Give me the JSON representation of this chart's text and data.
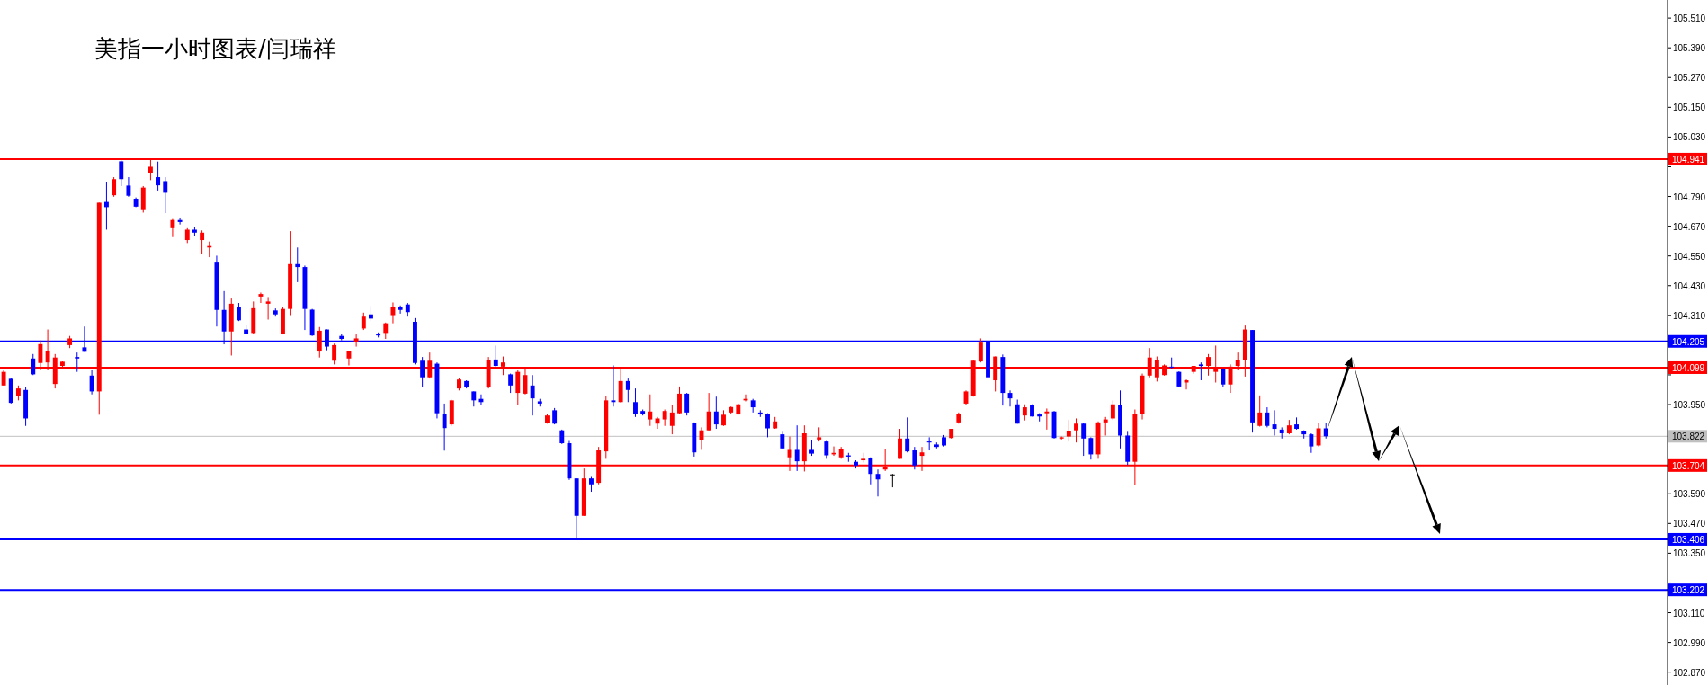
{
  "chart_data": {
    "type": "candlestick",
    "title": "美指一小时图表/闫瑞祥",
    "categories": [
      null,
      null,
      null,
      null,
      null,
      null,
      null,
      null,
      null,
      null,
      null,
      null,
      null,
      null,
      null,
      null,
      null,
      null,
      null,
      null,
      null,
      null,
      null,
      null,
      null,
      null,
      null,
      null,
      null,
      null,
      null,
      null,
      null,
      null,
      null,
      null,
      null,
      null,
      null,
      null,
      null,
      null,
      null,
      null,
      null,
      null,
      null,
      null,
      null,
      null,
      null,
      null,
      null,
      null,
      null,
      null,
      null,
      null,
      null,
      null,
      null,
      null,
      null,
      null,
      null,
      null,
      null,
      null,
      null,
      null,
      null,
      null,
      null,
      null,
      null,
      null,
      null,
      null,
      null,
      null,
      null,
      null,
      null,
      null,
      null,
      null,
      null,
      null,
      null,
      null,
      null,
      null,
      null,
      null,
      null,
      null,
      null,
      null,
      null,
      null,
      null,
      null,
      null,
      null,
      null,
      null,
      null,
      null,
      null,
      null,
      null,
      null,
      null,
      null,
      null,
      null,
      null,
      null,
      null,
      null,
      null,
      null,
      null,
      null,
      null,
      null,
      null,
      null,
      null,
      null,
      null,
      null,
      null,
      null,
      null,
      null,
      null,
      null,
      null,
      null,
      null,
      null,
      null,
      null,
      null,
      null,
      null,
      null,
      null,
      null,
      null,
      null,
      null,
      null,
      null,
      null,
      null,
      null,
      null,
      null,
      null,
      null,
      null,
      null,
      null,
      null,
      null,
      null,
      null,
      null,
      null,
      null,
      null,
      null,
      null,
      null,
      null,
      null,
      null,
      null,
      null,
      null,
      null,
      null,
      null,
      null,
      null,
      null,
      null,
      null,
      null,
      null,
      null,
      null,
      null,
      null,
      null,
      null,
      null,
      null,
      null,
      null,
      null,
      null,
      null,
      null,
      null,
      null,
      null,
      null,
      null,
      null,
      null,
      null,
      null,
      null,
      null,
      null,
      null,
      null,
      null,
      null,
      null,
      null,
      null,
      null,
      null
    ],
    "ohlc": [
      [
        104.027,
        104.088,
        104.027,
        104.082
      ],
      [
        104.054,
        104.057,
        103.954,
        103.957
      ],
      [
        103.985,
        104.027,
        103.967,
        104.015
      ],
      [
        104.009,
        104.021,
        103.864,
        103.894
      ],
      [
        104.136,
        104.154,
        104.069,
        104.072
      ],
      [
        104.118,
        104.209,
        104.088,
        104.194
      ],
      [
        104.12,
        104.253,
        104.088,
        104.166
      ],
      [
        104.033,
        104.154,
        104.015,
        104.14
      ],
      [
        104.106,
        104.124,
        104.096,
        104.123
      ],
      [
        104.19,
        104.227,
        104.178,
        104.217
      ],
      [
        104.142,
        104.16,
        104.082,
        104.136
      ],
      [
        104.181,
        104.265,
        104.163,
        104.163
      ],
      [
        104.067,
        104.088,
        103.991,
        104.003
      ],
      [
        104.003,
        104.765,
        103.909,
        104.765
      ],
      [
        104.768,
        104.85,
        104.656,
        104.747
      ],
      [
        104.795,
        104.868,
        104.789,
        104.86
      ],
      [
        104.932,
        104.935,
        104.832,
        104.86
      ],
      [
        104.834,
        104.868,
        104.789,
        104.793
      ],
      [
        104.781,
        104.786,
        104.747,
        104.749
      ],
      [
        104.735,
        104.832,
        104.725,
        104.826
      ],
      [
        104.886,
        104.941,
        104.856,
        104.91
      ],
      [
        104.868,
        104.931,
        104.814,
        104.835
      ],
      [
        104.852,
        104.868,
        104.723,
        104.805
      ],
      [
        104.662,
        104.699,
        104.626,
        104.695
      ],
      [
        104.695,
        104.705,
        104.677,
        104.687
      ],
      [
        104.614,
        104.662,
        104.602,
        104.656
      ],
      [
        104.656,
        104.668,
        104.632,
        104.644
      ],
      [
        104.614,
        104.653,
        104.559,
        104.644
      ],
      [
        104.584,
        104.608,
        104.545,
        104.59
      ],
      [
        104.523,
        104.551,
        104.265,
        104.332
      ],
      [
        104.332,
        104.408,
        104.193,
        104.245
      ],
      [
        104.245,
        104.378,
        104.148,
        104.357
      ],
      [
        104.345,
        104.36,
        104.287,
        104.29
      ],
      [
        104.253,
        104.269,
        104.233,
        104.236
      ],
      [
        104.239,
        104.366,
        104.233,
        104.339
      ],
      [
        104.386,
        104.402,
        104.36,
        104.396
      ],
      [
        104.357,
        104.384,
        104.293,
        104.366
      ],
      [
        104.33,
        104.338,
        104.305,
        104.314
      ],
      [
        104.236,
        104.342,
        104.233,
        104.336
      ],
      [
        104.336,
        104.65,
        104.311,
        104.517
      ],
      [
        104.517,
        104.584,
        104.444,
        104.505
      ],
      [
        104.505,
        104.511,
        104.251,
        104.336
      ],
      [
        104.333,
        104.336,
        104.227,
        104.229
      ],
      [
        104.164,
        104.263,
        104.14,
        104.248
      ],
      [
        104.253,
        104.253,
        104.169,
        104.184
      ],
      [
        104.127,
        104.196,
        104.112,
        104.19
      ],
      [
        104.227,
        104.236,
        104.209,
        104.215
      ],
      [
        104.136,
        104.166,
        104.108,
        104.166
      ],
      [
        104.203,
        104.233,
        104.184,
        104.217
      ],
      [
        104.257,
        104.321,
        104.251,
        104.305
      ],
      [
        104.314,
        104.348,
        104.287,
        104.297
      ],
      [
        104.236,
        104.241,
        104.221,
        104.229
      ],
      [
        104.239,
        104.281,
        104.215,
        104.278
      ],
      [
        104.311,
        104.362,
        104.278,
        104.344
      ],
      [
        104.342,
        104.35,
        104.317,
        104.332
      ],
      [
        104.354,
        104.36,
        104.305,
        104.323
      ],
      [
        104.284,
        104.299,
        104.112,
        104.118
      ],
      [
        104.127,
        104.142,
        104.019,
        104.06
      ],
      [
        104.06,
        104.16,
        104.055,
        104.127
      ],
      [
        104.115,
        104.12,
        103.894,
        103.915
      ],
      [
        103.912,
        103.954,
        103.764,
        103.855
      ],
      [
        103.87,
        103.97,
        103.864,
        103.967
      ],
      [
        104.015,
        104.057,
        104.007,
        104.051
      ],
      [
        104.045,
        104.048,
        104.015,
        104.019
      ],
      [
        104.003,
        104.003,
        103.942,
        103.967
      ],
      [
        103.973,
        103.991,
        103.948,
        103.96
      ],
      [
        104.019,
        104.142,
        104.015,
        104.13
      ],
      [
        104.132,
        104.188,
        104.1,
        104.106
      ],
      [
        104.103,
        104.144,
        104.069,
        104.12
      ],
      [
        104.072,
        104.075,
        103.997,
        104.027
      ],
      [
        103.997,
        104.088,
        103.948,
        104.082
      ],
      [
        103.994,
        104.1,
        103.991,
        104.069
      ],
      [
        104.027,
        104.069,
        103.906,
        103.975
      ],
      [
        103.963,
        103.973,
        103.942,
        103.954
      ],
      [
        103.876,
        103.912,
        103.873,
        103.906
      ],
      [
        103.927,
        103.936,
        103.87,
        103.873
      ],
      [
        103.846,
        103.849,
        103.791,
        103.794
      ],
      [
        103.794,
        103.803,
        103.646,
        103.652
      ],
      [
        103.652,
        103.652,
        103.404,
        103.501
      ],
      [
        103.501,
        103.692,
        103.501,
        103.652
      ],
      [
        103.652,
        103.658,
        103.598,
        103.628
      ],
      [
        103.634,
        103.779,
        103.628,
        103.765
      ],
      [
        103.761,
        103.985,
        103.731,
        103.967
      ],
      [
        103.967,
        104.108,
        103.942,
        103.96
      ],
      [
        103.96,
        104.1,
        103.958,
        104.045
      ],
      [
        104.045,
        104.055,
        103.96,
        104.009
      ],
      [
        103.96,
        104.015,
        103.9,
        103.912
      ],
      [
        103.924,
        103.93,
        103.906,
        103.912
      ],
      [
        103.89,
        103.991,
        103.864,
        103.922
      ],
      [
        103.873,
        103.9,
        103.852,
        103.894
      ],
      [
        103.89,
        103.93,
        103.864,
        103.924
      ],
      [
        103.864,
        103.948,
        103.83,
        103.918
      ],
      [
        103.915,
        104.023,
        103.912,
        103.994
      ],
      [
        103.994,
        103.997,
        103.906,
        103.918
      ],
      [
        103.876,
        103.878,
        103.74,
        103.757
      ],
      [
        103.806,
        103.858,
        103.767,
        103.846
      ],
      [
        103.846,
        103.997,
        103.846,
        103.922
      ],
      [
        103.922,
        103.982,
        103.852,
        103.87
      ],
      [
        103.866,
        103.927,
        103.864,
        103.909
      ],
      [
        103.918,
        103.942,
        103.912,
        103.94
      ],
      [
        103.91,
        103.954,
        103.91,
        103.951
      ],
      [
        103.967,
        103.991,
        103.963,
        103.973
      ],
      [
        103.967,
        103.973,
        103.918,
        103.939
      ],
      [
        103.918,
        103.927,
        103.9,
        103.91
      ],
      [
        103.912,
        103.915,
        103.818,
        103.854
      ],
      [
        103.854,
        103.9,
        103.852,
        103.882
      ],
      [
        103.83,
        103.84,
        103.769,
        103.773
      ],
      [
        103.737,
        103.821,
        103.682,
        103.767
      ],
      [
        103.767,
        103.866,
        103.682,
        103.721
      ],
      [
        103.721,
        103.866,
        103.68,
        103.834
      ],
      [
        103.767,
        103.806,
        103.743,
        103.752
      ],
      [
        103.809,
        103.858,
        103.801,
        103.818
      ],
      [
        103.801,
        103.803,
        103.731,
        103.745
      ],
      [
        103.749,
        103.781,
        103.743,
        103.755
      ],
      [
        103.737,
        103.779,
        103.731,
        103.769
      ],
      [
        103.745,
        103.755,
        103.719,
        103.74
      ],
      [
        103.719,
        103.725,
        103.692,
        103.704
      ],
      [
        103.725,
        103.755,
        103.716,
        103.731
      ],
      [
        103.733,
        103.737,
        103.628,
        103.67
      ],
      [
        103.67,
        103.688,
        103.579,
        103.648
      ],
      [
        103.688,
        103.769,
        103.682,
        103.7
      ],
      [
        103.668,
        103.67,
        103.616,
        103.668
      ],
      [
        103.731,
        103.852,
        103.731,
        103.813
      ],
      [
        103.813,
        103.898,
        103.757,
        103.761
      ],
      [
        103.765,
        103.779,
        103.688,
        103.704
      ],
      [
        103.743,
        103.779,
        103.682,
        103.757
      ],
      [
        103.801,
        103.818,
        103.765,
        103.797
      ],
      [
        103.789,
        103.797,
        103.773,
        103.779
      ],
      [
        103.818,
        103.827,
        103.781,
        103.785
      ],
      [
        103.815,
        103.852,
        103.813,
        103.852
      ],
      [
        103.878,
        103.918,
        103.873,
        103.912
      ],
      [
        103.954,
        104.007,
        103.948,
        104.003
      ],
      [
        103.985,
        104.13,
        103.982,
        104.127
      ],
      [
        104.124,
        104.217,
        104.12,
        104.2
      ],
      [
        104.203,
        104.203,
        104.048,
        104.06
      ],
      [
        104.048,
        104.144,
        104.003,
        104.144
      ],
      [
        104.142,
        104.152,
        103.946,
        103.997
      ],
      [
        103.997,
        104.007,
        103.942,
        103.975
      ],
      [
        103.951,
        103.97,
        103.873,
        103.873
      ],
      [
        103.906,
        103.951,
        103.886,
        103.939
      ],
      [
        103.948,
        103.951,
        103.902,
        103.902
      ],
      [
        103.91,
        103.915,
        103.882,
        103.902
      ],
      [
        103.915,
        103.934,
        103.849,
        103.922
      ],
      [
        103.922,
        103.924,
        103.813,
        103.815
      ],
      [
        103.813,
        103.821,
        103.809,
        103.818
      ],
      [
        103.821,
        103.888,
        103.801,
        103.842
      ],
      [
        103.846,
        103.894,
        103.797,
        103.873
      ],
      [
        103.873,
        103.876,
        103.743,
        103.813
      ],
      [
        103.815,
        103.818,
        103.728,
        103.749
      ],
      [
        103.749,
        103.882,
        103.731,
        103.878
      ],
      [
        103.878,
        103.9,
        103.825,
        103.89
      ],
      [
        103.894,
        103.967,
        103.888,
        103.951
      ],
      [
        103.948,
        104.007,
        103.773,
        103.825
      ],
      [
        103.825,
        103.84,
        103.706,
        103.719
      ],
      [
        103.719,
        103.93,
        103.624,
        103.912
      ],
      [
        103.912,
        104.075,
        103.89,
        104.067
      ],
      [
        104.067,
        104.178,
        104.06,
        104.14
      ],
      [
        104.06,
        104.144,
        104.043,
        104.13
      ],
      [
        104.069,
        104.112,
        104.067,
        104.108
      ],
      [
        104.103,
        104.14,
        104.094,
        104.1
      ],
      [
        104.082,
        104.084,
        104.021,
        104.023
      ],
      [
        104.039,
        104.051,
        104.011,
        104.048
      ],
      [
        104.082,
        104.106,
        104.075,
        104.106
      ],
      [
        104.112,
        104.12,
        104.048,
        104.106
      ],
      [
        104.106,
        104.154,
        104.067,
        104.142
      ],
      [
        104.082,
        104.188,
        104.039,
        104.094
      ],
      [
        104.094,
        104.096,
        104.019,
        104.031
      ],
      [
        104.031,
        104.112,
        103.997,
        104.103
      ],
      [
        104.106,
        104.16,
        104.088,
        104.13
      ],
      [
        104.13,
        104.269,
        104.063,
        104.253
      ],
      [
        104.251,
        104.251,
        103.837,
        103.878
      ],
      [
        103.864,
        103.987,
        103.861,
        103.918
      ],
      [
        103.918,
        103.939,
        103.858,
        103.864
      ],
      [
        103.87,
        103.927,
        103.825,
        103.852
      ],
      [
        103.849,
        103.858,
        103.813,
        103.834
      ],
      [
        103.834,
        103.888,
        103.83,
        103.866
      ],
      [
        103.87,
        103.898,
        103.849,
        103.852
      ],
      [
        103.842,
        103.846,
        103.813,
        103.83
      ],
      [
        103.83,
        103.834,
        103.755,
        103.781
      ],
      [
        103.785,
        103.876,
        103.781,
        103.854
      ],
      [
        103.854,
        103.876,
        103.813,
        103.822
      ],
      null,
      null,
      null,
      null,
      null,
      null,
      null,
      null,
      null,
      null,
      null,
      null,
      null,
      null,
      null,
      null,
      null,
      null,
      null,
      null,
      null,
      null,
      null,
      null,
      null,
      null,
      null,
      null,
      null,
      null,
      null,
      null,
      null,
      null,
      null,
      null,
      null,
      null,
      null,
      null,
      null,
      null,
      null,
      null,
      null,
      null
    ],
    "colors": [
      "#ff0000",
      "#0000ff",
      "#ff0000",
      "#0000ff",
      "#0000ff",
      "#ff0000",
      "#ff0000",
      "#ff0000",
      "#ff0000",
      "#ff0000",
      "#0000ff",
      "#0000ff",
      "#0000ff",
      "#ff0000",
      "#0000ff",
      "#ff0000",
      "#0000ff",
      "#0000ff",
      "#0000ff",
      "#ff0000",
      "#ff0000",
      "#0000ff",
      "#0000ff",
      "#ff0000",
      "#0000ff",
      "#ff0000",
      "#0000ff",
      "#ff0000",
      "#ff0000",
      "#0000ff",
      "#0000ff",
      "#ff0000",
      "#0000ff",
      "#0000ff",
      "#ff0000",
      "#ff0000",
      "#ff0000",
      "#0000ff",
      "#ff0000",
      "#ff0000",
      "#0000ff",
      "#0000ff",
      "#0000ff",
      "#ff0000",
      "#0000ff",
      "#ff0000",
      "#0000ff",
      "#ff0000",
      "#ff0000",
      "#ff0000",
      "#0000ff",
      "#0000ff",
      "#ff0000",
      "#ff0000",
      "#0000ff",
      "#0000ff",
      "#0000ff",
      "#0000ff",
      "#ff0000",
      "#0000ff",
      "#0000ff",
      "#ff0000",
      "#ff0000",
      "#0000ff",
      "#0000ff",
      "#0000ff",
      "#ff0000",
      "#0000ff",
      "#ff0000",
      "#0000ff",
      "#ff0000",
      "#ff0000",
      "#0000ff",
      "#0000ff",
      "#ff0000",
      "#0000ff",
      "#0000ff",
      "#0000ff",
      "#0000ff",
      "#ff0000",
      "#0000ff",
      "#ff0000",
      "#ff0000",
      "#0000ff",
      "#ff0000",
      "#0000ff",
      "#0000ff",
      "#0000ff",
      "#ff0000",
      "#ff0000",
      "#ff0000",
      "#ff0000",
      "#ff0000",
      "#0000ff",
      "#0000ff",
      "#ff0000",
      "#ff0000",
      "#0000ff",
      "#ff0000",
      "#ff0000",
      "#ff0000",
      "#ff0000",
      "#0000ff",
      "#0000ff",
      "#0000ff",
      "#ff0000",
      "#0000ff",
      "#ff0000",
      "#0000ff",
      "#ff0000",
      "#0000ff",
      "#ff0000",
      "#0000ff",
      "#ff0000",
      "#ff0000",
      "#0000ff",
      "#0000ff",
      "#ff0000",
      "#0000ff",
      "#0000ff",
      "#ff0000",
      "#000000",
      "#ff0000",
      "#0000ff",
      "#0000ff",
      "#ff0000",
      "#0000ff",
      "#0000ff",
      "#0000ff",
      "#ff0000",
      "#ff0000",
      "#ff0000",
      "#ff0000",
      "#ff0000",
      "#0000ff",
      "#ff0000",
      "#0000ff",
      "#0000ff",
      "#0000ff",
      "#ff0000",
      "#0000ff",
      "#0000ff",
      "#ff0000",
      "#0000ff",
      "#ff0000",
      "#ff0000",
      "#ff0000",
      "#0000ff",
      "#0000ff",
      "#ff0000",
      "#ff0000",
      "#ff0000",
      "#0000ff",
      "#0000ff",
      "#ff0000",
      "#ff0000",
      "#ff0000",
      "#ff0000",
      "#ff0000",
      "#0000ff",
      "#0000ff",
      "#ff0000",
      "#ff0000",
      "#0000ff",
      "#ff0000",
      "#ff0000",
      "#0000ff",
      "#ff0000",
      "#ff0000",
      "#ff0000",
      "#0000ff",
      "#ff0000",
      "#0000ff",
      "#0000ff",
      "#0000ff",
      "#ff0000",
      "#0000ff",
      "#0000ff",
      "#0000ff",
      "#ff0000",
      "#0000ff",
      null,
      null,
      null,
      null,
      null,
      null,
      null,
      null,
      null,
      null,
      null,
      null,
      null,
      null,
      null,
      null,
      null,
      null,
      null,
      null,
      null,
      null,
      null,
      null,
      null,
      null,
      null,
      null,
      null,
      null,
      null,
      null,
      null,
      null,
      null,
      null,
      null,
      null,
      null,
      null,
      null,
      null,
      null,
      null,
      null,
      null
    ],
    "ylim": [
      102.818,
      105.583
    ],
    "yticks": [
      {
        "value": 105.51,
        "label": "105.510"
      },
      {
        "value": 105.39,
        "label": "105.390"
      },
      {
        "value": 105.27,
        "label": "105.270"
      },
      {
        "value": 105.15,
        "label": "105.150"
      },
      {
        "value": 105.03,
        "label": "105.030"
      },
      {
        "value": 104.91,
        "label": null
      },
      {
        "value": 104.79,
        "label": "104.790"
      },
      {
        "value": 104.67,
        "label": "104.670"
      },
      {
        "value": 104.55,
        "label": "104.550"
      },
      {
        "value": 104.43,
        "label": "104.430"
      },
      {
        "value": 104.31,
        "label": "104.310"
      },
      {
        "value": 104.19,
        "label": null
      },
      {
        "value": 104.07,
        "label": null
      },
      {
        "value": 103.95,
        "label": "103.950"
      },
      {
        "value": 103.83,
        "label": null
      },
      {
        "value": 103.71,
        "label": null
      },
      {
        "value": 103.59,
        "label": "103.590"
      },
      {
        "value": 103.47,
        "label": "103.470"
      },
      {
        "value": 103.35,
        "label": "103.350"
      },
      {
        "value": 103.23,
        "label": null
      },
      {
        "value": 103.11,
        "label": "103.110"
      },
      {
        "value": 102.99,
        "label": "102.990"
      },
      {
        "value": 102.87,
        "label": "102.870"
      }
    ],
    "ref_lines": [
      {
        "axis": "y",
        "value": 104.941,
        "label": "104.941",
        "color": "#ff0000"
      },
      {
        "axis": "y",
        "value": 104.205,
        "label": "104.205",
        "color": "#0000ff"
      },
      {
        "axis": "y",
        "value": 104.099,
        "label": "104.099",
        "color": "#ff0000"
      },
      {
        "axis": "y",
        "value": 103.822,
        "label": "103.822",
        "color": "#c0c0c0"
      },
      {
        "axis": "y",
        "value": 103.704,
        "label": "103.704",
        "color": "#ff0000"
      },
      {
        "axis": "y",
        "value": 103.406,
        "label": "103.406",
        "color": "#0000ff"
      },
      {
        "axis": "y",
        "value": 103.202,
        "label": "103.202",
        "color": "#0000ff"
      }
    ]
  }
}
